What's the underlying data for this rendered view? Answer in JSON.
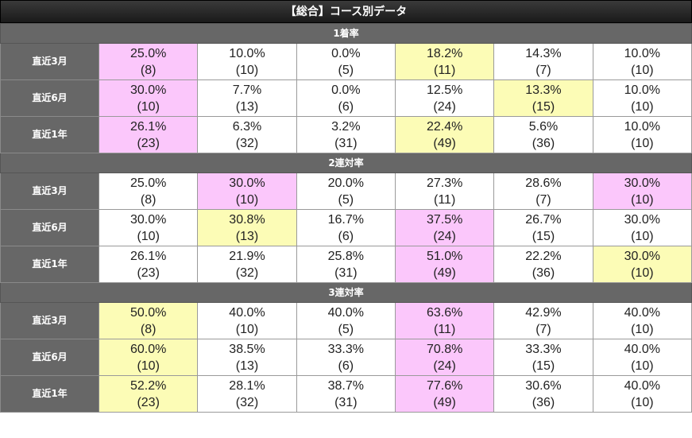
{
  "title": "【総合】コース別データ",
  "sections": [
    {
      "name": "1着率",
      "rows": [
        {
          "label": "直近3月",
          "cells": [
            {
              "pct": "25.0%",
              "cnt": "(8)",
              "hl": "pink"
            },
            {
              "pct": "10.0%",
              "cnt": "(10)",
              "hl": ""
            },
            {
              "pct": "0.0%",
              "cnt": "(5)",
              "hl": ""
            },
            {
              "pct": "18.2%",
              "cnt": "(11)",
              "hl": "yellow"
            },
            {
              "pct": "14.3%",
              "cnt": "(7)",
              "hl": ""
            },
            {
              "pct": "10.0%",
              "cnt": "(10)",
              "hl": ""
            }
          ]
        },
        {
          "label": "直近6月",
          "cells": [
            {
              "pct": "30.0%",
              "cnt": "(10)",
              "hl": "pink"
            },
            {
              "pct": "7.7%",
              "cnt": "(13)",
              "hl": ""
            },
            {
              "pct": "0.0%",
              "cnt": "(6)",
              "hl": ""
            },
            {
              "pct": "12.5%",
              "cnt": "(24)",
              "hl": ""
            },
            {
              "pct": "13.3%",
              "cnt": "(15)",
              "hl": "yellow"
            },
            {
              "pct": "10.0%",
              "cnt": "(10)",
              "hl": ""
            }
          ]
        },
        {
          "label": "直近1年",
          "cells": [
            {
              "pct": "26.1%",
              "cnt": "(23)",
              "hl": "pink"
            },
            {
              "pct": "6.3%",
              "cnt": "(32)",
              "hl": ""
            },
            {
              "pct": "3.2%",
              "cnt": "(31)",
              "hl": ""
            },
            {
              "pct": "22.4%",
              "cnt": "(49)",
              "hl": "yellow"
            },
            {
              "pct": "5.6%",
              "cnt": "(36)",
              "hl": ""
            },
            {
              "pct": "10.0%",
              "cnt": "(10)",
              "hl": ""
            }
          ]
        }
      ]
    },
    {
      "name": "2連対率",
      "rows": [
        {
          "label": "直近3月",
          "cells": [
            {
              "pct": "25.0%",
              "cnt": "(8)",
              "hl": ""
            },
            {
              "pct": "30.0%",
              "cnt": "(10)",
              "hl": "pink"
            },
            {
              "pct": "20.0%",
              "cnt": "(5)",
              "hl": ""
            },
            {
              "pct": "27.3%",
              "cnt": "(11)",
              "hl": ""
            },
            {
              "pct": "28.6%",
              "cnt": "(7)",
              "hl": ""
            },
            {
              "pct": "30.0%",
              "cnt": "(10)",
              "hl": "pink"
            }
          ]
        },
        {
          "label": "直近6月",
          "cells": [
            {
              "pct": "30.0%",
              "cnt": "(10)",
              "hl": ""
            },
            {
              "pct": "30.8%",
              "cnt": "(13)",
              "hl": "yellow"
            },
            {
              "pct": "16.7%",
              "cnt": "(6)",
              "hl": ""
            },
            {
              "pct": "37.5%",
              "cnt": "(24)",
              "hl": "pink"
            },
            {
              "pct": "26.7%",
              "cnt": "(15)",
              "hl": ""
            },
            {
              "pct": "30.0%",
              "cnt": "(10)",
              "hl": ""
            }
          ]
        },
        {
          "label": "直近1年",
          "cells": [
            {
              "pct": "26.1%",
              "cnt": "(23)",
              "hl": ""
            },
            {
              "pct": "21.9%",
              "cnt": "(32)",
              "hl": ""
            },
            {
              "pct": "25.8%",
              "cnt": "(31)",
              "hl": ""
            },
            {
              "pct": "51.0%",
              "cnt": "(49)",
              "hl": "pink"
            },
            {
              "pct": "22.2%",
              "cnt": "(36)",
              "hl": ""
            },
            {
              "pct": "30.0%",
              "cnt": "(10)",
              "hl": "yellow"
            }
          ]
        }
      ]
    },
    {
      "name": "3連対率",
      "rows": [
        {
          "label": "直近3月",
          "cells": [
            {
              "pct": "50.0%",
              "cnt": "(8)",
              "hl": "yellow"
            },
            {
              "pct": "40.0%",
              "cnt": "(10)",
              "hl": ""
            },
            {
              "pct": "40.0%",
              "cnt": "(5)",
              "hl": ""
            },
            {
              "pct": "63.6%",
              "cnt": "(11)",
              "hl": "pink"
            },
            {
              "pct": "42.9%",
              "cnt": "(7)",
              "hl": ""
            },
            {
              "pct": "40.0%",
              "cnt": "(10)",
              "hl": ""
            }
          ]
        },
        {
          "label": "直近6月",
          "cells": [
            {
              "pct": "60.0%",
              "cnt": "(10)",
              "hl": "yellow"
            },
            {
              "pct": "38.5%",
              "cnt": "(13)",
              "hl": ""
            },
            {
              "pct": "33.3%",
              "cnt": "(6)",
              "hl": ""
            },
            {
              "pct": "70.8%",
              "cnt": "(24)",
              "hl": "pink"
            },
            {
              "pct": "33.3%",
              "cnt": "(15)",
              "hl": ""
            },
            {
              "pct": "40.0%",
              "cnt": "(10)",
              "hl": ""
            }
          ]
        },
        {
          "label": "直近1年",
          "cells": [
            {
              "pct": "52.2%",
              "cnt": "(23)",
              "hl": "yellow"
            },
            {
              "pct": "28.1%",
              "cnt": "(32)",
              "hl": ""
            },
            {
              "pct": "38.7%",
              "cnt": "(31)",
              "hl": ""
            },
            {
              "pct": "77.6%",
              "cnt": "(49)",
              "hl": "pink"
            },
            {
              "pct": "30.6%",
              "cnt": "(36)",
              "hl": ""
            },
            {
              "pct": "40.0%",
              "cnt": "(10)",
              "hl": ""
            }
          ]
        }
      ]
    }
  ],
  "colors": {
    "pink": "#fbc7fb",
    "yellow": "#fcfcb6",
    "label_bg": "#676767",
    "title_bg": "#222222"
  }
}
